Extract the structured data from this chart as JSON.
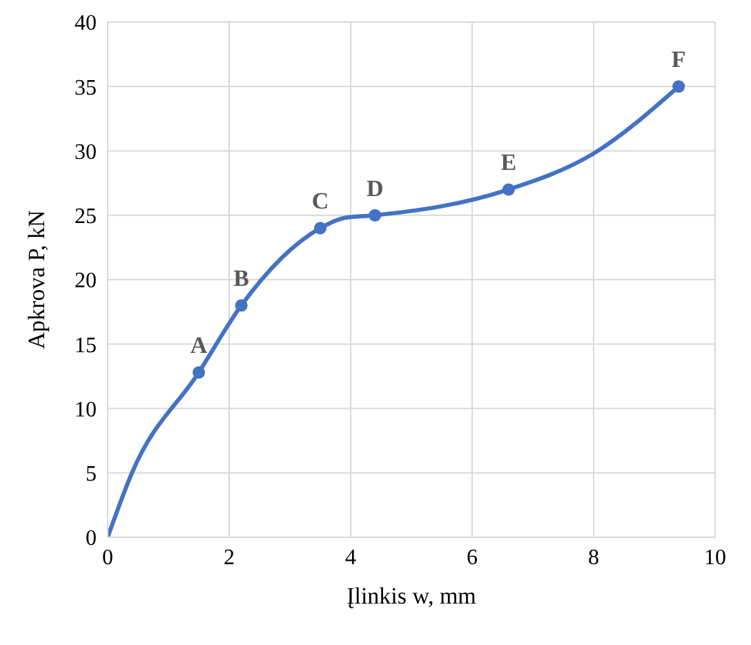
{
  "chart_data": {
    "type": "line",
    "xlabel": "Įlinkis w, mm",
    "ylabel": "Apkrova P, kN",
    "xlim": [
      0,
      10
    ],
    "xticks": [
      0,
      2,
      4,
      6,
      8,
      10
    ],
    "ylim": [
      0,
      40
    ],
    "yticks": [
      0,
      5,
      10,
      15,
      20,
      25,
      30,
      35,
      40
    ],
    "grid": true,
    "line_style": "solid",
    "series": [
      {
        "color": "#4472c4",
        "marker": "none",
        "x": [
          0,
          0.4,
          1.5,
          2.2,
          3.5,
          3.9,
          4.4,
          6.6,
          8,
          9.4
        ],
        "values": [
          0,
          5,
          12.8,
          18,
          24,
          24.8,
          25,
          27,
          29.8,
          35
        ]
      },
      {
        "type": "scatter",
        "color": "#4472c4",
        "marker": "circle",
        "x": [
          1.5,
          2.2,
          3.5,
          4.4,
          6.6,
          9.4
        ],
        "values": [
          12.8,
          18,
          24,
          25,
          27,
          35
        ]
      }
    ],
    "annotations": [
      {
        "text": "A",
        "x": 1.5,
        "y": 12.8
      },
      {
        "text": "B",
        "x": 2.2,
        "y": 18
      },
      {
        "text": "C",
        "x": 3.5,
        "y": 24
      },
      {
        "text": "D",
        "x": 4.4,
        "y": 25
      },
      {
        "text": "E",
        "x": 6.6,
        "y": 27
      },
      {
        "text": "F",
        "x": 9.4,
        "y": 35
      }
    ]
  }
}
